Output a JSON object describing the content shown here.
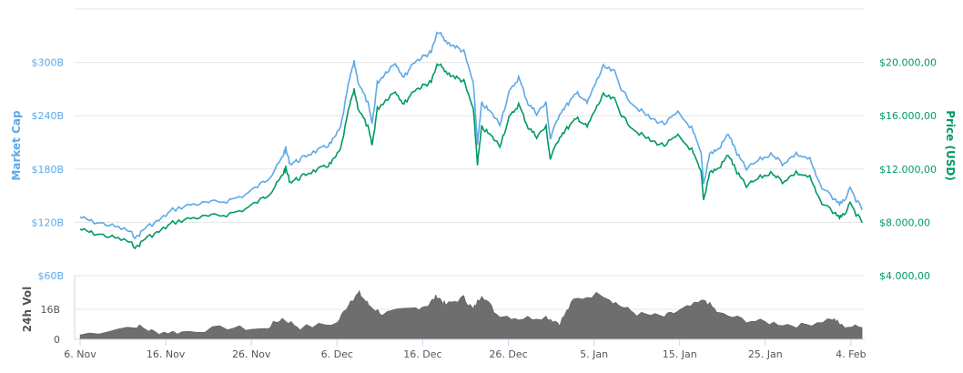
{
  "chart_data": {
    "type": "line",
    "title": "",
    "x_unit": "days since 6. Nov",
    "xlim": [
      -1.0,
      92.0
    ],
    "x_ticks": [
      {
        "day": 0,
        "label": "6. Nov"
      },
      {
        "day": 10,
        "label": "16. Nov"
      },
      {
        "day": 20,
        "label": "26. Nov"
      },
      {
        "day": 30,
        "label": "6. Dec"
      },
      {
        "day": 40,
        "label": "16. Dec"
      },
      {
        "day": 50,
        "label": "26. Dec"
      },
      {
        "day": 60,
        "label": "5. Jan"
      },
      {
        "day": 70,
        "label": "15. Jan"
      },
      {
        "day": 80,
        "label": "25. Jan"
      },
      {
        "day": 90,
        "label": "4. Feb"
      }
    ],
    "left_axis": {
      "label": "Market Cap",
      "color": "#5da9e9",
      "ylim": [
        60,
        360
      ],
      "ticks": [
        {
          "v": 60,
          "label": "$60B"
        },
        {
          "v": 120,
          "label": "$120B"
        },
        {
          "v": 180,
          "label": "$180B"
        },
        {
          "v": 240,
          "label": "$240B"
        },
        {
          "v": 300,
          "label": "$300B"
        }
      ]
    },
    "right_axis": {
      "label": "Price (USD)",
      "color": "#009966",
      "ylim": [
        4000,
        24000
      ],
      "ticks": [
        {
          "v": 4000,
          "label": "$4.000,00"
        },
        {
          "v": 8000,
          "label": "$8.000,00"
        },
        {
          "v": 12000,
          "label": "$12.000,00"
        },
        {
          "v": 16000,
          "label": "$16.000,00"
        },
        {
          "v": 20000,
          "label": "$20.000,00"
        }
      ]
    },
    "volume_axis": {
      "label": "24h Vol",
      "ylim": [
        0,
        34
      ],
      "ticks": [
        {
          "v": 0,
          "label": "0"
        },
        {
          "v": 16,
          "label": "16B"
        }
      ]
    },
    "days": [
      0,
      1.3,
      3.4,
      5.5,
      6.6,
      7.6,
      9.2,
      10.8,
      12.9,
      15.0,
      17.1,
      19.3,
      21.4,
      22.4,
      23.5,
      24.0,
      24.5,
      25.6,
      26.7,
      28.3,
      29.3,
      30.4,
      31.5,
      32.0,
      32.5,
      33.6,
      34.1,
      34.7,
      35.7,
      36.8,
      37.8,
      38.9,
      40.0,
      41.0,
      41.8,
      42.7,
      43.8,
      44.8,
      45.9,
      46.4,
      46.9,
      48.0,
      49.0,
      50.1,
      51.2,
      52.3,
      53.3,
      54.4,
      54.9,
      56.0,
      57.0,
      58.1,
      59.2,
      60.2,
      61.1,
      62.4,
      63.4,
      65.0,
      66.6,
      68.2,
      69.8,
      71.4,
      72.5,
      72.8,
      73.5,
      74.6,
      75.7,
      76.7,
      77.8,
      79.4,
      80.9,
      82.0,
      83.6,
      85.2,
      86.3,
      88.2,
      88.9,
      89.9,
      91.3
    ],
    "series": [
      {
        "name": "Market Cap",
        "unit": "B USD",
        "color": "#5da9e9",
        "values": [
          126,
          121,
          117,
          111,
          103,
          114,
          122,
          134,
          140,
          142,
          144,
          151,
          165,
          174,
          191,
          203,
          186,
          190,
          197,
          203,
          209,
          226,
          283,
          300,
          277,
          254,
          231,
          277,
          289,
          300,
          283,
          300,
          306,
          312,
          335,
          323,
          318,
          312,
          277,
          209,
          254,
          243,
          231,
          266,
          283,
          254,
          243,
          254,
          214,
          243,
          254,
          266,
          254,
          277,
          295,
          289,
          266,
          249,
          237,
          231,
          243,
          226,
          197,
          163,
          197,
          203,
          220,
          197,
          180,
          191,
          197,
          186,
          197,
          191,
          163,
          145,
          140,
          157,
          134
        ]
      },
      {
        "name": "Price (USD)",
        "unit": "USD",
        "color": "#009966",
        "values": [
          7487,
          7214,
          6940,
          6598,
          6120,
          6804,
          7282,
          7966,
          8308,
          8445,
          8581,
          8992,
          9812,
          10359,
          11385,
          12069,
          11043,
          11317,
          11727,
          12069,
          12411,
          13436,
          16855,
          17881,
          16513,
          15146,
          13778,
          16513,
          17197,
          17881,
          16855,
          17881,
          18223,
          18565,
          19933,
          19249,
          18907,
          18565,
          16513,
          12411,
          15146,
          14462,
          13778,
          15830,
          16855,
          15146,
          14462,
          15146,
          12753,
          14462,
          15146,
          15830,
          15146,
          16513,
          17539,
          17197,
          15830,
          14804,
          14120,
          13778,
          14462,
          13436,
          11727,
          9676,
          11727,
          12069,
          13095,
          11727,
          10701,
          11385,
          11727,
          11043,
          11727,
          11385,
          9676,
          8650,
          8308,
          9334,
          7966
        ]
      },
      {
        "name": "24h Vol",
        "unit": "B USD",
        "color": "#6e6e6e",
        "days": [
          0,
          6.6,
          8.7,
          11.9,
          17.2,
          21.5,
          23.6,
          25.7,
          30.0,
          31.6,
          32.6,
          33.7,
          35.3,
          38.5,
          40.6,
          41.7,
          42.7,
          44.8,
          45.9,
          46.9,
          48.6,
          51.2,
          54.4,
          56.0,
          57.6,
          60.8,
          62.9,
          65.0,
          68.2,
          70.4,
          73.0,
          74.6,
          77.8,
          81.0,
          84.2,
          87.9,
          88.9,
          91.3
        ],
        "values": [
          2.4,
          7.3,
          3.9,
          3.9,
          6.3,
          5.3,
          11.2,
          6.3,
          8.7,
          20.9,
          24.7,
          18.4,
          13.6,
          16.0,
          18.4,
          23.3,
          18.4,
          22.3,
          16.0,
          24.3,
          13.6,
          11.2,
          12.1,
          8.7,
          20.9,
          24.7,
          18.4,
          13.6,
          12.1,
          16.0,
          20.9,
          13.6,
          10.2,
          8.7,
          7.3,
          11.2,
          7.3,
          6.3
        ]
      }
    ],
    "grid": true,
    "legend": "none"
  }
}
